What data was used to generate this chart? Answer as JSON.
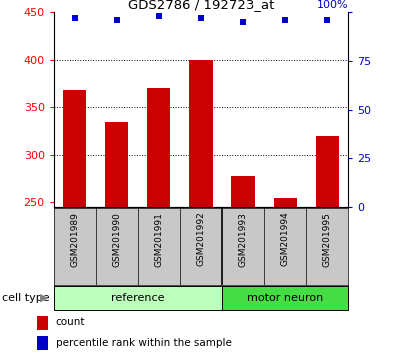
{
  "title": "GDS2786 / 192723_at",
  "categories": [
    "GSM201989",
    "GSM201990",
    "GSM201991",
    "GSM201992",
    "GSM201993",
    "GSM201994",
    "GSM201995"
  ],
  "bar_values": [
    368,
    335,
    370,
    400,
    278,
    255,
    320
  ],
  "percentile_values": [
    97,
    96,
    98,
    97,
    95,
    96,
    96
  ],
  "bar_color": "#cc0000",
  "dot_color": "#0000cc",
  "ylim_left": [
    245,
    450
  ],
  "ylim_right": [
    0,
    100
  ],
  "yticks_left": [
    250,
    300,
    350,
    400,
    450
  ],
  "yticks_right": [
    0,
    25,
    50,
    75,
    100
  ],
  "grid_values": [
    300,
    350,
    400
  ],
  "n_ref": 4,
  "n_motor": 3,
  "ref_label": "reference",
  "motor_label": "motor neuron",
  "cell_type_label": "cell type",
  "legend_count": "count",
  "legend_percentile": "percentile rank within the sample",
  "ref_color": "#bbffbb",
  "motor_color": "#44dd44",
  "bar_bottom": 245,
  "tick_area_color": "#c8c8c8"
}
